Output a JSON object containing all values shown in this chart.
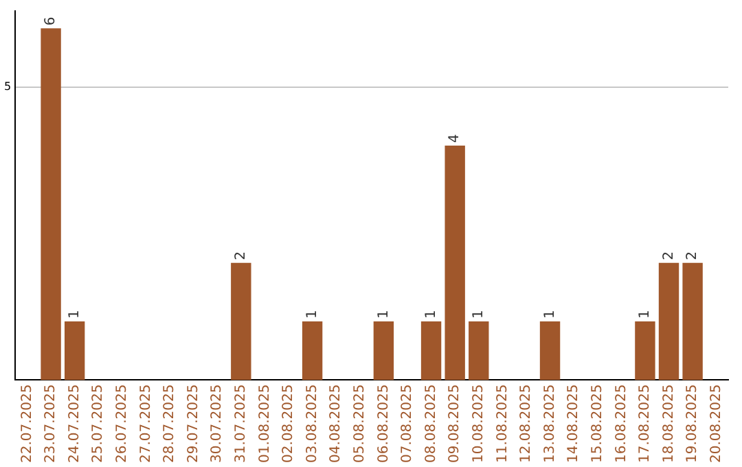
{
  "chart_data": {
    "type": "bar",
    "categories": [
      "22.07.2025",
      "23.07.2025",
      "24.07.2025",
      "25.07.2025",
      "26.07.2025",
      "27.07.2025",
      "28.07.2025",
      "29.07.2025",
      "30.07.2025",
      "31.07.2025",
      "01.08.2025",
      "02.08.2025",
      "03.08.2025",
      "04.08.2025",
      "05.08.2025",
      "06.08.2025",
      "07.08.2025",
      "08.08.2025",
      "09.08.2025",
      "10.08.2025",
      "11.08.2025",
      "12.08.2025",
      "13.08.2025",
      "14.08.2025",
      "15.08.2025",
      "16.08.2025",
      "17.08.2025",
      "18.08.2025",
      "19.08.2025",
      "20.08.2025"
    ],
    "values": [
      0,
      6,
      1,
      0,
      0,
      0,
      0,
      0,
      0,
      2,
      0,
      0,
      1,
      0,
      0,
      1,
      0,
      1,
      4,
      1,
      0,
      0,
      1,
      0,
      0,
      0,
      1,
      2,
      2,
      0
    ],
    "value_labels": [
      null,
      "6",
      "1",
      null,
      null,
      null,
      null,
      null,
      null,
      "2",
      null,
      null,
      "1",
      null,
      null,
      "1",
      null,
      "1",
      "4",
      "1",
      null,
      null,
      "1",
      null,
      null,
      null,
      "1",
      "2",
      "2",
      null
    ],
    "color": "#a0572b",
    "ylim": [
      0,
      6.3
    ],
    "yticks": [
      5
    ],
    "grid": "y",
    "legend": false
  }
}
